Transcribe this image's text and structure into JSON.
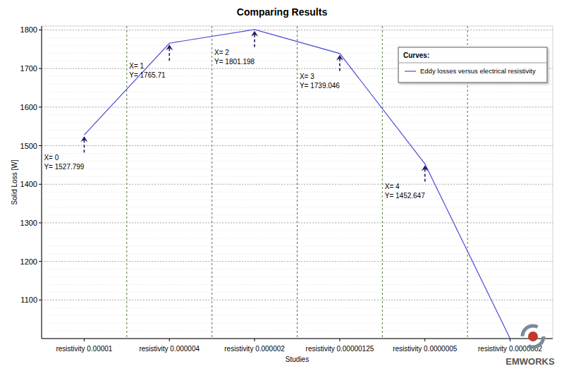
{
  "chart_data": {
    "type": "line",
    "title": "Comparing Results",
    "x_label": "Studies",
    "y_label": "Solid Loss [W]",
    "categories": [
      "resistivity 0.00001",
      "resistivity 0.000004",
      "resistivity 0.000002",
      "resistivity 0.00000125",
      "resistivity 0.0000005",
      "resistivity 0.0000002"
    ],
    "series": [
      {
        "name": "Eddy losses versus electrical resistivity",
        "color": "#4a4ad6",
        "values": [
          1527.799,
          1765.71,
          1801.198,
          1739.046,
          1452.647,
          1000
        ]
      }
    ],
    "annotations": [
      [
        "X= 0",
        "Y= 1527.799"
      ],
      [
        "X= 1",
        "Y= 1765.71"
      ],
      [
        "X= 2",
        "Y= 1801.198"
      ],
      [
        "X= 3",
        "Y= 1739.046"
      ],
      [
        "X= 4",
        "Y= 1452.647"
      ],
      null
    ],
    "legend_title": "Curves:",
    "logo_text": "EMWORKS",
    "ylim": [
      1000,
      1810
    ],
    "yticks": [
      1100,
      1200,
      1300,
      1400,
      1500,
      1600,
      1700,
      1800
    ],
    "grid": true,
    "legend": "upper right",
    "marker": "none",
    "line_style": "solid"
  }
}
